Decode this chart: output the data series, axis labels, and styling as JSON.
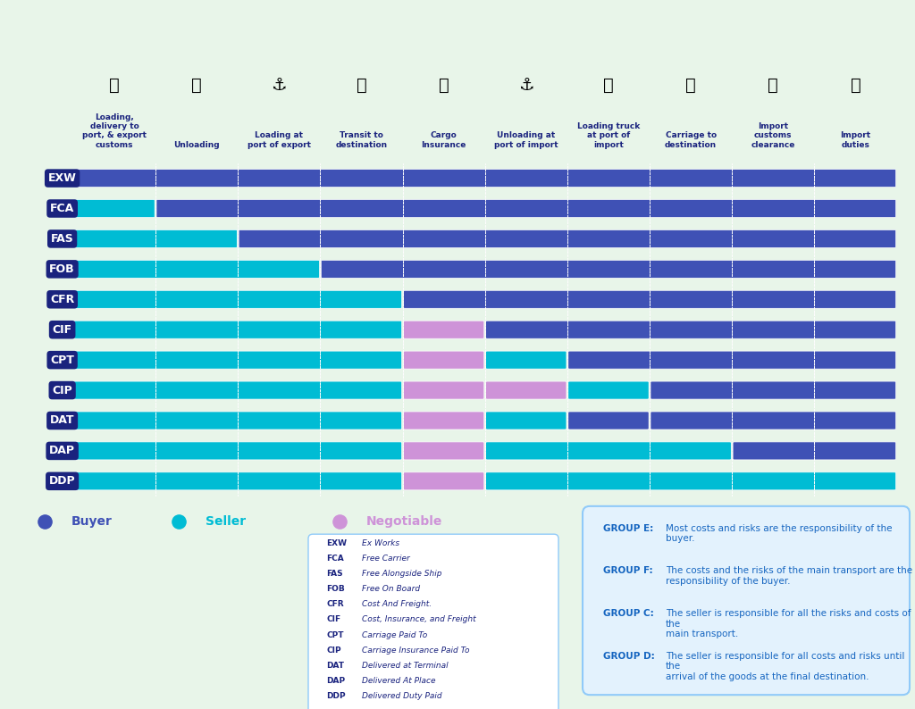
{
  "incoterms": [
    "EXW",
    "FCA",
    "FAS",
    "FOB",
    "CFR",
    "CIF",
    "CPT",
    "CIP",
    "DAT",
    "DAP",
    "DDP"
  ],
  "columns": 10,
  "col_labels": [
    "Loading,\ndelivery to\nport, & export\ncustoms",
    "Unloading",
    "Loading at\nport of export",
    "Transit to\ndestination",
    "Cargo\nInsurance",
    "Unloading at\nport of import",
    "Loading truck\nat port of\nimport",
    "Carriage to\ndestination",
    "Import\ncustoms\nclearance",
    "Import\nduties"
  ],
  "buyer_color": "#3f51b5",
  "seller_color": "#00bcd4",
  "negotiable_color": "#ce93d8",
  "background_color": "#e8f5e9",
  "row_label_bg": "#1a237e",
  "row_label_color": "#ffffff",
  "header_color": "#1a237e",
  "note_bg": "#e3f2fd",
  "note_border": "#90caf9",
  "rows": {
    "EXW": [
      {
        "start": 0,
        "end": 10,
        "color": "buyer"
      }
    ],
    "FCA": [
      {
        "start": 0,
        "end": 1,
        "color": "seller"
      },
      {
        "start": 1,
        "end": 10,
        "color": "buyer"
      }
    ],
    "FAS": [
      {
        "start": 0,
        "end": 2,
        "color": "seller"
      },
      {
        "start": 2,
        "end": 10,
        "color": "buyer"
      }
    ],
    "FOB": [
      {
        "start": 0,
        "end": 3,
        "color": "seller"
      },
      {
        "start": 3,
        "end": 10,
        "color": "buyer"
      }
    ],
    "CFR": [
      {
        "start": 0,
        "end": 4,
        "color": "seller"
      },
      {
        "start": 4,
        "end": 10,
        "color": "buyer"
      }
    ],
    "CIF": [
      {
        "start": 0,
        "end": 4,
        "color": "seller"
      },
      {
        "start": 4,
        "end": 5,
        "color": "negotiable"
      },
      {
        "start": 5,
        "end": 10,
        "color": "buyer"
      }
    ],
    "CPT": [
      {
        "start": 0,
        "end": 4,
        "color": "seller"
      },
      {
        "start": 4,
        "end": 5,
        "color": "negotiable"
      },
      {
        "start": 5,
        "end": 6,
        "color": "seller"
      },
      {
        "start": 6,
        "end": 10,
        "color": "buyer"
      }
    ],
    "CIP": [
      {
        "start": 0,
        "end": 4,
        "color": "seller"
      },
      {
        "start": 4,
        "end": 5,
        "color": "negotiable"
      },
      {
        "start": 5,
        "end": 6,
        "color": "negotiable"
      },
      {
        "start": 6,
        "end": 7,
        "color": "seller"
      },
      {
        "start": 7,
        "end": 10,
        "color": "buyer"
      }
    ],
    "DAT": [
      {
        "start": 0,
        "end": 4,
        "color": "seller"
      },
      {
        "start": 4,
        "end": 5,
        "color": "negotiable"
      },
      {
        "start": 5,
        "end": 6,
        "color": "seller"
      },
      {
        "start": 6,
        "end": 7,
        "color": "buyer"
      },
      {
        "start": 7,
        "end": 10,
        "color": "buyer"
      }
    ],
    "DAP": [
      {
        "start": 0,
        "end": 4,
        "color": "seller"
      },
      {
        "start": 4,
        "end": 5,
        "color": "negotiable"
      },
      {
        "start": 5,
        "end": 8,
        "color": "seller"
      },
      {
        "start": 8,
        "end": 10,
        "color": "buyer"
      }
    ],
    "DDP": [
      {
        "start": 0,
        "end": 4,
        "color": "seller"
      },
      {
        "start": 4,
        "end": 5,
        "color": "negotiable"
      },
      {
        "start": 5,
        "end": 10,
        "color": "seller"
      }
    ]
  },
  "abbreviations": {
    "EXW": "Ex Works",
    "FCA": "Free Carrier",
    "FAS": "Free Alongside Ship",
    "FOB": "Free On Board",
    "CFR": "Cost And Freight.",
    "CIF": "Cost, Insurance, and Freight",
    "CPT": "Carriage Paid To",
    "CIP": "Carriage Insurance Paid To",
    "DAT": "Delivered at Terminal",
    "DAP": "Delivered At Place",
    "DDP": "Delivered Duty Paid"
  },
  "group_texts": {
    "E": "Most costs and risks are the responsibility of the buyer.",
    "F": "The costs and the risks of the main transport are the\nresponsibility of the buyer.",
    "C": "The seller is responsible for all the risks and costs of the\nmain transport.",
    "D": "The seller is responsible for all costs and risks until the\narrival of the goods at the final destination."
  }
}
